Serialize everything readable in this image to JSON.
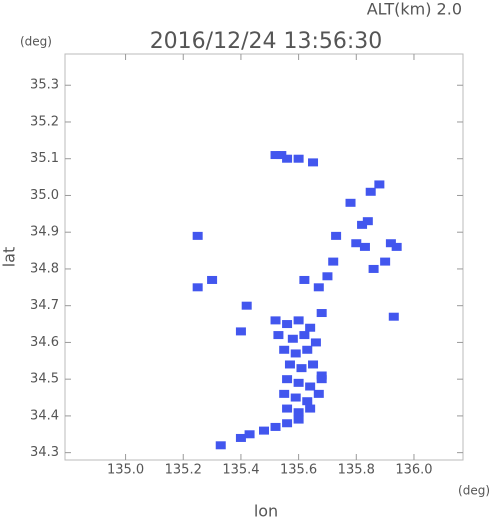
{
  "chart_data": {
    "type": "scatter",
    "title": "2016/12/24 13:56:30",
    "subtitle": "ALT(km) 2.0",
    "y_unit": "(deg)",
    "x_unit": "(deg)",
    "xlabel": "lon",
    "ylabel": "lat",
    "color": "#4256ee",
    "xlim": [
      134.79,
      136.17
    ],
    "ylim": [
      34.28,
      35.385
    ],
    "xticks": [
      {
        "value": 135.0,
        "label": "135.0"
      },
      135.2,
      135.4,
      135.6,
      135.8,
      {
        "value": 136.0,
        "label": "136.0"
      }
    ],
    "yticks": [
      34.3,
      34.4,
      34.5,
      34.6,
      34.7,
      34.8,
      34.9,
      {
        "value": 35.0,
        "label": "35.0"
      },
      35.1,
      35.2,
      35.3
    ],
    "x": [
      135.52,
      135.54,
      135.56,
      135.6,
      135.65,
      135.88,
      135.85,
      135.78,
      135.84,
      135.82,
      135.8,
      135.83,
      135.92,
      135.94,
      135.9,
      135.86,
      135.73,
      135.72,
      135.7,
      135.67,
      135.62,
      135.25,
      135.25,
      135.3,
      135.93,
      135.42,
      135.4,
      135.52,
      135.56,
      135.6,
      135.64,
      135.68,
      135.53,
      135.58,
      135.62,
      135.66,
      135.55,
      135.59,
      135.63,
      135.57,
      135.61,
      135.65,
      135.68,
      135.56,
      135.6,
      135.64,
      135.68,
      135.55,
      135.59,
      135.63,
      135.67,
      135.56,
      135.6,
      135.64,
      135.33,
      135.4,
      135.43,
      135.48,
      135.52,
      135.56,
      135.6
    ],
    "values": [
      35.11,
      35.11,
      35.1,
      35.1,
      35.09,
      35.03,
      35.01,
      34.98,
      34.93,
      34.92,
      34.87,
      34.86,
      34.87,
      34.86,
      34.82,
      34.8,
      34.89,
      34.82,
      34.78,
      34.75,
      34.77,
      34.89,
      34.75,
      34.77,
      34.67,
      34.7,
      34.63,
      34.66,
      34.65,
      34.66,
      34.64,
      34.68,
      34.62,
      34.61,
      34.62,
      34.6,
      34.58,
      34.57,
      34.58,
      34.54,
      34.53,
      34.54,
      34.51,
      34.5,
      34.49,
      34.48,
      34.5,
      34.46,
      34.45,
      34.44,
      34.46,
      34.42,
      34.41,
      34.42,
      34.32,
      34.34,
      34.35,
      34.36,
      34.37,
      34.38,
      34.39
    ]
  }
}
